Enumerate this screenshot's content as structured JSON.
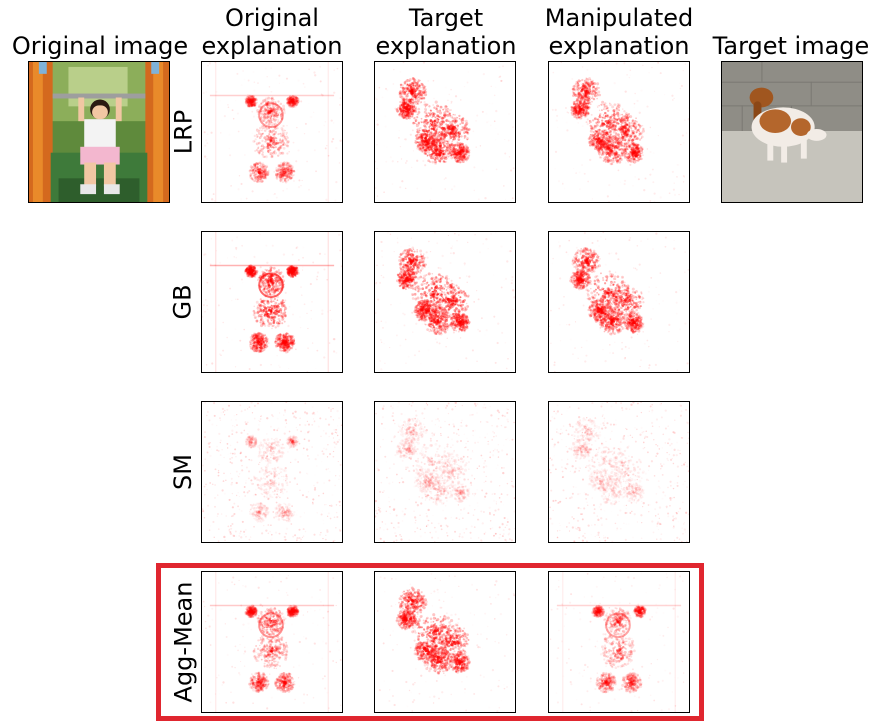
{
  "columns": {
    "original_image": "Original image",
    "original_explanation": [
      "Original",
      "explanation"
    ],
    "target_explanation": [
      "Target",
      "explanation"
    ],
    "manipulated_explanation": [
      "Manipulated",
      "explanation"
    ],
    "target_image": "Target image"
  },
  "rows": [
    "LRP",
    "GB",
    "SM",
    "Agg-Mean"
  ],
  "highlight_color": "#e0262f",
  "heatmap_color": "#ff0000"
}
